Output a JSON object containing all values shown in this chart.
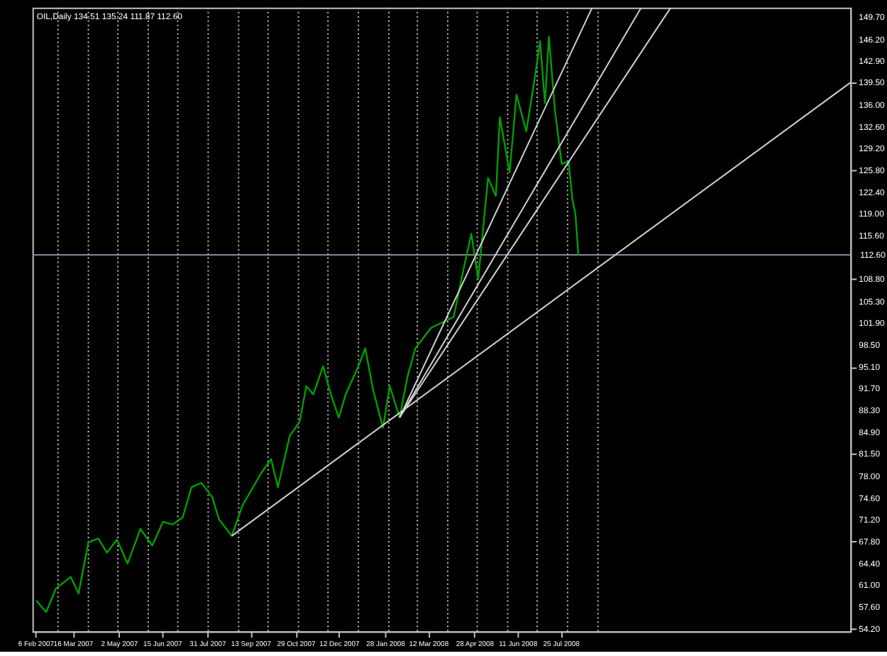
{
  "chart_data": {
    "type": "line",
    "title": "OIL,Daily  134.51 135.24 111.87 112.60",
    "xlim": [
      "2007-02-03",
      "2009-05-16"
    ],
    "xticks": [
      {
        "value": "2007-02-06",
        "label": "6 Feb 2007"
      },
      {
        "value": "2007-03-16",
        "label": "16 Mar 2007"
      },
      {
        "value": "2007-05-02",
        "label": "2 May 2007"
      },
      {
        "value": "2007-06-15",
        "label": "15 Jun 2007"
      },
      {
        "value": "2007-07-31",
        "label": "31 Jul 2007"
      },
      {
        "value": "2007-09-13",
        "label": "13 Sep 2007"
      },
      {
        "value": "2007-10-29",
        "label": "29 Oct 2007"
      },
      {
        "value": "2007-12-12",
        "label": "12 Dec 2007"
      },
      {
        "value": "2008-01-28",
        "label": "28 Jan 2008"
      },
      {
        "value": "2008-03-12",
        "label": "12 Mar 2008"
      },
      {
        "value": "2008-04-28",
        "label": "28 Apr 2008"
      },
      {
        "value": "2008-06-11",
        "label": "11 Jun 2008"
      },
      {
        "value": "2008-07-25",
        "label": "25 Jul 2008"
      }
    ],
    "ylim": [
      53.8,
      151.2
    ],
    "yticks": [
      {
        "value": 149.7,
        "label": "149.70"
      },
      {
        "value": 146.2,
        "label": "146.20"
      },
      {
        "value": 142.9,
        "label": "142.90"
      },
      {
        "value": 139.5,
        "label": "139.50"
      },
      {
        "value": 136.0,
        "label": "136.00"
      },
      {
        "value": 132.6,
        "label": "132.60"
      },
      {
        "value": 129.2,
        "label": "129.20"
      },
      {
        "value": 125.8,
        "label": "125.80"
      },
      {
        "value": 122.4,
        "label": "122.40"
      },
      {
        "value": 119.0,
        "label": "119.00"
      },
      {
        "value": 115.6,
        "label": "115.60"
      },
      {
        "value": 108.8,
        "label": "108.80"
      },
      {
        "value": 105.3,
        "label": "105.30"
      },
      {
        "value": 101.9,
        "label": "101.90"
      },
      {
        "value": 98.5,
        "label": "98.50"
      },
      {
        "value": 95.1,
        "label": "95.10"
      },
      {
        "value": 91.7,
        "label": "91.70"
      },
      {
        "value": 88.3,
        "label": "88.30"
      },
      {
        "value": 84.9,
        "label": "84.90"
      },
      {
        "value": 81.5,
        "label": "81.50"
      },
      {
        "value": 78.0,
        "label": "78.00"
      },
      {
        "value": 74.6,
        "label": "74.60"
      },
      {
        "value": 71.2,
        "label": "71.20"
      },
      {
        "value": 67.8,
        "label": "67.80"
      },
      {
        "value": 64.4,
        "label": "64.40"
      },
      {
        "value": 61.0,
        "label": "61.00"
      },
      {
        "value": 57.6,
        "label": "57.60"
      },
      {
        "value": 54.2,
        "label": "54.20"
      }
    ],
    "grid": false,
    "marker": "none",
    "line_style": "solid",
    "series": [
      {
        "color": "#00a000",
        "x": [
          "2007-02-07",
          "2007-02-17",
          "2007-02-27",
          "2007-03-14",
          "2007-03-22",
          "2007-04-01",
          "2007-04-11",
          "2007-04-20",
          "2007-04-30",
          "2007-05-11",
          "2007-05-24",
          "2007-06-05",
          "2007-06-16",
          "2007-06-26",
          "2007-07-06",
          "2007-07-15",
          "2007-07-25",
          "2007-08-05",
          "2007-08-12",
          "2007-08-25",
          "2007-09-05",
          "2007-09-24",
          "2007-10-04",
          "2007-10-11",
          "2007-10-23",
          "2007-11-02",
          "2007-11-09",
          "2007-11-16",
          "2007-11-26",
          "2007-12-04",
          "2007-12-12",
          "2007-12-19",
          "2008-01-01",
          "2008-01-08",
          "2008-01-16",
          "2008-01-26",
          "2008-02-02",
          "2008-02-12",
          "2008-02-20",
          "2008-02-28",
          "2008-03-15",
          "2008-04-07",
          "2008-04-17",
          "2008-04-25",
          "2008-05-02",
          "2008-05-12",
          "2008-05-20",
          "2008-05-24",
          "2008-06-03",
          "2008-06-10",
          "2008-06-20",
          "2008-06-29",
          "2008-07-04",
          "2008-07-09",
          "2008-07-13",
          "2008-07-19",
          "2008-07-26",
          "2008-08-02",
          "2008-08-06",
          "2008-08-09",
          "2008-08-12"
        ],
        "values": [
          58.6,
          56.8,
          60.5,
          62.3,
          59.7,
          67.7,
          68.3,
          66.1,
          68.1,
          64.4,
          69.8,
          67.2,
          70.9,
          70.5,
          71.6,
          76.3,
          77.0,
          74.8,
          71.3,
          68.7,
          73.5,
          78.5,
          80.7,
          76.3,
          84.3,
          86.5,
          92.1,
          90.8,
          95.2,
          90.8,
          87.2,
          90.8,
          95.2,
          98.0,
          91.5,
          85.6,
          92.1,
          87.2,
          93.6,
          98.0,
          101.2,
          102.9,
          110.3,
          115.9,
          108.8,
          124.6,
          121.8,
          134.1,
          125.5,
          137.6,
          131.9,
          140.6,
          146.0,
          136.3,
          146.7,
          135.4,
          126.8,
          127.2,
          121.1,
          119.0,
          112.6
        ]
      },
      {
        "color": "#d0d0d0",
        "x": [
          "2007-08-25",
          "2009-05-16"
        ],
        "values": [
          68.7,
          139.5
        ]
      },
      {
        "color": "#cfcfd4",
        "x": [
          "2008-02-12",
          "2008-11-14"
        ],
        "values": [
          87.2,
          151.2
        ]
      },
      {
        "color": "#d4d0cc",
        "x": [
          "2008-02-12",
          "2008-10-15"
        ],
        "values": [
          87.2,
          151.2
        ]
      },
      {
        "color": "#ccd4cf",
        "x": [
          "2008-02-12",
          "2008-08-26"
        ],
        "values": [
          87.2,
          151.2
        ]
      }
    ],
    "ref_lines": [
      {
        "axis": "y",
        "value": 112.6,
        "label": "112.60",
        "color": "#7f8c99",
        "line_style": "solid"
      },
      {
        "axis": "x",
        "value": "2007-03-01",
        "label": null,
        "color": "#c0c0c0",
        "line_style": "dotted"
      },
      {
        "axis": "x",
        "value": "2007-04-01",
        "label": null,
        "color": "#c0c0c0",
        "line_style": "dotted"
      },
      {
        "axis": "x",
        "value": "2007-05-01",
        "label": null,
        "color": "#c0c0c0",
        "line_style": "dotted"
      },
      {
        "axis": "x",
        "value": "2007-06-01",
        "label": null,
        "color": "#c0c0c0",
        "line_style": "dotted"
      },
      {
        "axis": "x",
        "value": "2007-07-01",
        "label": null,
        "color": "#c0c0c0",
        "line_style": "dotted"
      },
      {
        "axis": "x",
        "value": "2007-08-01",
        "label": null,
        "color": "#c0c0c0",
        "line_style": "dotted"
      },
      {
        "axis": "x",
        "value": "2007-09-01",
        "label": null,
        "color": "#c0c0c0",
        "line_style": "dotted"
      },
      {
        "axis": "x",
        "value": "2007-10-01",
        "label": null,
        "color": "#c0c0c0",
        "line_style": "dotted"
      },
      {
        "axis": "x",
        "value": "2007-11-01",
        "label": null,
        "color": "#c0c0c0",
        "line_style": "dotted"
      },
      {
        "axis": "x",
        "value": "2007-12-01",
        "label": null,
        "color": "#c0c0c0",
        "line_style": "dotted"
      },
      {
        "axis": "x",
        "value": "2008-01-01",
        "label": null,
        "color": "#c0c0c0",
        "line_style": "dotted"
      },
      {
        "axis": "x",
        "value": "2008-02-01",
        "label": null,
        "color": "#c0c0c0",
        "line_style": "dotted"
      },
      {
        "axis": "x",
        "value": "2008-03-01",
        "label": null,
        "color": "#c0c0c0",
        "line_style": "dotted"
      },
      {
        "axis": "x",
        "value": "2008-04-01",
        "label": null,
        "color": "#c0c0c0",
        "line_style": "dotted"
      },
      {
        "axis": "x",
        "value": "2008-05-01",
        "label": null,
        "color": "#c0c0c0",
        "line_style": "dotted"
      },
      {
        "axis": "x",
        "value": "2008-06-01",
        "label": null,
        "color": "#c0c0c0",
        "line_style": "dotted"
      },
      {
        "axis": "x",
        "value": "2008-07-01",
        "label": null,
        "color": "#c0c0c0",
        "line_style": "dotted"
      },
      {
        "axis": "x",
        "value": "2008-08-01",
        "label": null,
        "color": "#c0c0c0",
        "line_style": "dotted"
      },
      {
        "axis": "x",
        "value": "2008-09-01",
        "label": null,
        "color": "#c0c0c0",
        "line_style": "dotted"
      }
    ]
  }
}
